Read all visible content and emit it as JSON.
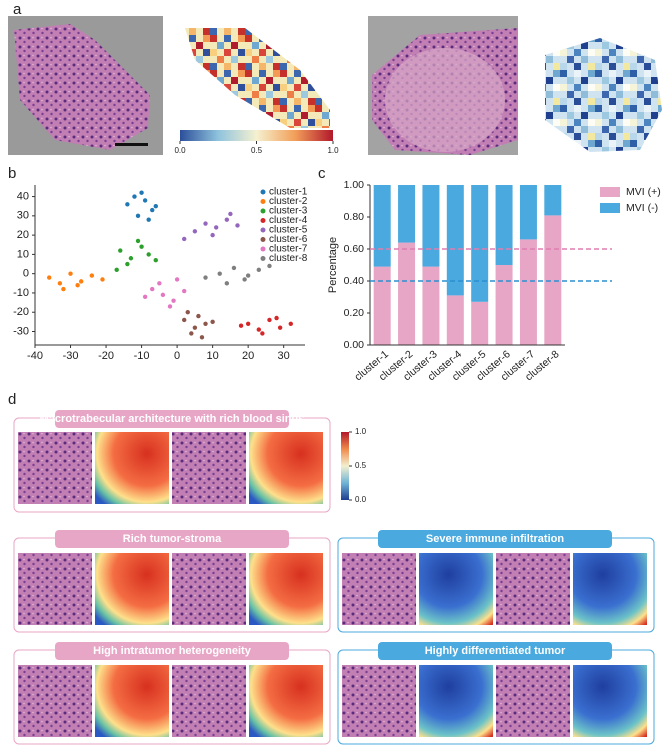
{
  "panel_labels": [
    "a",
    "b",
    "c",
    "d"
  ],
  "chart_data": [
    {
      "type": "colorbar",
      "colors": [
        "#2c4f9a",
        "#8fc3dd",
        "#f5f1d0",
        "#f2a05a",
        "#b2182b"
      ],
      "xlim": [
        0,
        1
      ],
      "xticks": [
        {
          "value": 0,
          "label": "0.0"
        },
        {
          "value": 0.5,
          "label": "0.5"
        },
        {
          "value": 1,
          "label": "1.0"
        }
      ]
    },
    {
      "type": "scatter",
      "xlim": [
        -40,
        36
      ],
      "ylim": [
        -37,
        46
      ],
      "xticks": [
        -40,
        -30,
        -20,
        -10,
        0,
        10,
        20,
        30
      ],
      "yticks": [
        -30,
        -20,
        -10,
        0,
        10,
        20,
        30,
        40
      ],
      "series": [
        {
          "name": "cluster-1",
          "color": "#1f77b4",
          "x": [
            -12,
            -9,
            -7,
            -11,
            -14,
            -8,
            -10,
            -6
          ],
          "y": [
            40,
            38,
            33,
            30,
            36,
            28,
            42,
            35
          ]
        },
        {
          "name": "cluster-2",
          "color": "#ff7f0e",
          "x": [
            -36,
            -33,
            -30,
            -27,
            -24,
            -32,
            -28,
            -21
          ],
          "y": [
            -2,
            -5,
            0,
            -4,
            -1,
            -8,
            -6,
            -3
          ]
        },
        {
          "name": "cluster-3",
          "color": "#2ca02c",
          "x": [
            -16,
            -13,
            -10,
            -8,
            -14,
            -11,
            -6,
            -17
          ],
          "y": [
            12,
            8,
            14,
            10,
            5,
            17,
            7,
            2
          ]
        },
        {
          "name": "cluster-4",
          "color": "#d62728",
          "x": [
            20,
            23,
            26,
            29,
            32,
            24,
            28,
            18
          ],
          "y": [
            -26,
            -29,
            -24,
            -28,
            -26,
            -31,
            -23,
            -27
          ]
        },
        {
          "name": "cluster-5",
          "color": "#9467bd",
          "x": [
            5,
            8,
            11,
            14,
            17,
            10,
            15,
            2
          ],
          "y": [
            22,
            26,
            24,
            28,
            25,
            20,
            31,
            18
          ]
        },
        {
          "name": "cluster-6",
          "color": "#8c564b",
          "x": [
            2,
            5,
            8,
            4,
            7,
            10,
            3,
            6
          ],
          "y": [
            -24,
            -28,
            -26,
            -31,
            -33,
            -25,
            -20,
            -22
          ]
        },
        {
          "name": "cluster-7",
          "color": "#e377c2",
          "x": [
            -7,
            -4,
            -1,
            2,
            -5,
            -2,
            -9,
            0
          ],
          "y": [
            -8,
            -11,
            -14,
            -9,
            -5,
            -17,
            -12,
            -3
          ]
        },
        {
          "name": "cluster-8",
          "color": "#7f7f7f",
          "x": [
            8,
            12,
            16,
            20,
            23,
            26,
            14,
            19
          ],
          "y": [
            -2,
            0,
            3,
            -1,
            2,
            4,
            -5,
            -3
          ]
        }
      ]
    },
    {
      "type": "stacked-bar",
      "y_label": "Percentage",
      "categories": [
        "cluster-1",
        "cluster-2",
        "cluster-3",
        "cluster-4",
        "cluster-5",
        "cluster-6",
        "cluster-7",
        "cluster-8"
      ],
      "series": [
        {
          "name": "MVI (+)",
          "color": "#e8a6c6",
          "values": [
            0.49,
            0.64,
            0.49,
            0.31,
            0.27,
            0.5,
            0.66,
            0.81
          ]
        },
        {
          "name": "MVI (-)",
          "color": "#4aa9de",
          "values": [
            0.51,
            0.36,
            0.51,
            0.69,
            0.73,
            0.5,
            0.34,
            0.19
          ]
        }
      ],
      "ylim": [
        0,
        1
      ],
      "yticks": [
        {
          "value": 0,
          "label": "0.00"
        },
        {
          "value": 0.2,
          "label": "0.20"
        },
        {
          "value": 0.4,
          "label": "0.40"
        },
        {
          "value": 0.6,
          "label": "0.60"
        },
        {
          "value": 0.8,
          "label": "0.80"
        },
        {
          "value": 1,
          "label": "1.00"
        }
      ],
      "hlines": [
        {
          "value": 0.6,
          "color": "#e07fb0"
        },
        {
          "value": 0.4,
          "color": "#2a8fd0"
        }
      ]
    },
    {
      "type": "colorbar-vertical",
      "colors": [
        "#1f3f8f",
        "#6fb4d6",
        "#f3efcf",
        "#f08a4a",
        "#b2182b"
      ],
      "ylim": [
        0,
        1
      ],
      "yticks": [
        {
          "value": 1,
          "label": "1.0"
        },
        {
          "value": 0.5,
          "label": "0.5"
        },
        {
          "value": 0,
          "label": "0.0"
        }
      ]
    }
  ],
  "panel_d": {
    "boxes": [
      {
        "title": "Macrotrabecular architecture with rich blood sinus"
      },
      {
        "title": "Rich tumor-stroma"
      },
      {
        "title": "Severe immune infiltration"
      },
      {
        "title": "High intratumor heterogeneity"
      },
      {
        "title": "Highly differentiated tumor"
      }
    ]
  }
}
